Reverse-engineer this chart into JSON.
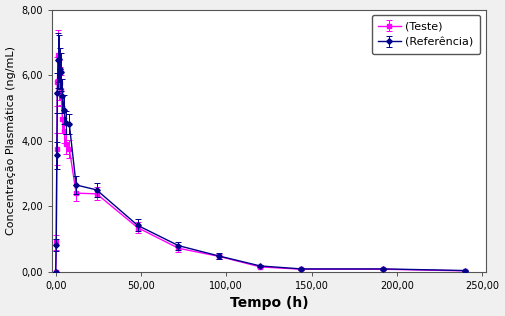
{
  "title": "",
  "xlabel": "Tempo (h)",
  "ylabel": "Concentração Plasmática (ng/mL)",
  "xlim": [
    -2,
    252
  ],
  "ylim": [
    0,
    8.0
  ],
  "xticks": [
    0,
    50,
    100,
    150,
    200,
    250
  ],
  "xtick_labels": [
    "0,00",
    "50,00",
    "100,00",
    "150,00",
    "200,00",
    "250,00"
  ],
  "yticks": [
    0.0,
    2.0,
    4.0,
    6.0,
    8.0
  ],
  "ytick_labels": [
    "0,00",
    "2,00",
    "4,00",
    "6,00",
    "8,00"
  ],
  "teste_x": [
    0,
    0.33,
    0.67,
    1.0,
    1.5,
    2.0,
    2.5,
    3.0,
    4.0,
    5.0,
    6.0,
    8.0,
    12.0,
    24.0,
    48.0,
    72.0,
    96.0,
    120.0,
    144.0,
    192.0,
    240.0
  ],
  "teste_y": [
    0.0,
    0.9,
    3.75,
    5.8,
    6.62,
    5.85,
    5.75,
    5.55,
    4.65,
    4.3,
    3.9,
    3.75,
    2.4,
    2.38,
    1.35,
    0.72,
    0.47,
    0.15,
    0.08,
    0.08,
    0.03
  ],
  "teste_yerr": [
    0.0,
    0.22,
    0.5,
    0.75,
    0.75,
    0.6,
    0.5,
    0.45,
    0.42,
    0.38,
    0.3,
    0.28,
    0.25,
    0.2,
    0.17,
    0.1,
    0.07,
    0.03,
    0.02,
    0.02,
    0.01
  ],
  "ref_x": [
    0,
    0.33,
    0.67,
    1.0,
    1.5,
    2.0,
    2.5,
    3.0,
    4.0,
    5.0,
    6.0,
    8.0,
    12.0,
    24.0,
    48.0,
    72.0,
    96.0,
    120.0,
    144.0,
    192.0,
    240.0
  ],
  "ref_y": [
    0.0,
    0.82,
    3.55,
    5.45,
    6.45,
    6.5,
    6.2,
    6.1,
    5.35,
    4.95,
    4.55,
    4.5,
    2.65,
    2.5,
    1.42,
    0.8,
    0.48,
    0.18,
    0.09,
    0.09,
    0.04
  ],
  "ref_yerr": [
    0.0,
    0.18,
    0.42,
    0.62,
    0.85,
    0.72,
    0.62,
    0.58,
    0.52,
    0.45,
    0.35,
    0.3,
    0.28,
    0.22,
    0.18,
    0.12,
    0.08,
    0.04,
    0.02,
    0.02,
    0.01
  ],
  "teste_color": "#FF00FF",
  "ref_color": "#00008B",
  "legend_teste": "(Teste)",
  "legend_ref": "(Referência)",
  "bg_color": "#f0f0f0",
  "plot_bg": "#ffffff",
  "xlabel_fontsize": 10,
  "ylabel_fontsize": 8,
  "tick_fontsize": 7,
  "legend_fontsize": 8
}
